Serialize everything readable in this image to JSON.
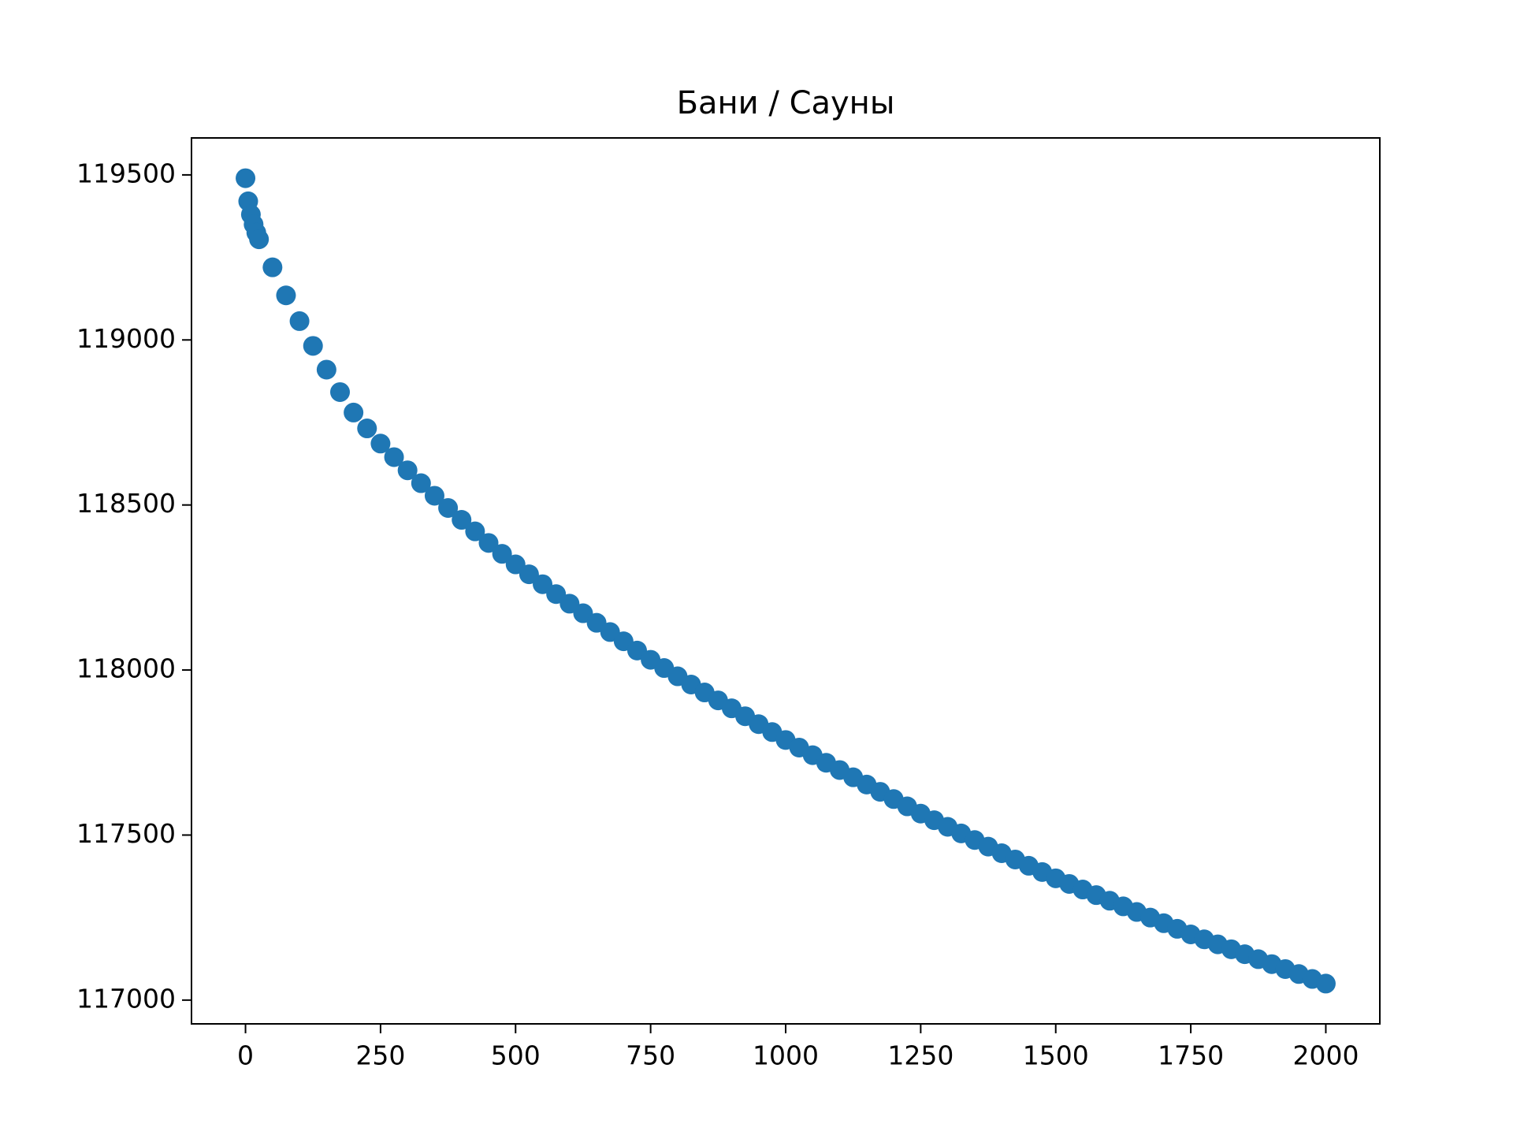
{
  "chart_data": {
    "type": "scatter",
    "title": "Бани / Сауны",
    "color": "#1f77b4",
    "x": [
      0,
      5,
      10,
      15,
      20,
      25,
      50,
      75,
      100,
      125,
      150,
      175,
      200,
      225,
      250,
      275,
      300,
      325,
      350,
      375,
      400,
      425,
      450,
      475,
      500,
      525,
      550,
      575,
      600,
      625,
      650,
      675,
      700,
      725,
      750,
      775,
      800,
      825,
      850,
      875,
      900,
      925,
      950,
      975,
      1000,
      1025,
      1050,
      1075,
      1100,
      1125,
      1150,
      1175,
      1200,
      1225,
      1250,
      1275,
      1300,
      1325,
      1350,
      1375,
      1400,
      1425,
      1450,
      1475,
      1500,
      1525,
      1550,
      1575,
      1600,
      1625,
      1650,
      1675,
      1700,
      1725,
      1750,
      1775,
      1800,
      1825,
      1850,
      1875,
      1900,
      1925,
      1950,
      1975,
      2000
    ],
    "values": [
      119490,
      119420,
      119380,
      119350,
      119325,
      119305,
      119220,
      119135,
      119057,
      118982,
      118910,
      118842,
      118780,
      118732,
      118686,
      118645,
      118605,
      118566,
      118528,
      118491,
      118455,
      118420,
      118385,
      118352,
      118320,
      118290,
      118260,
      118230,
      118201,
      118172,
      118143,
      118115,
      118087,
      118059,
      118031,
      118006,
      117981,
      117956,
      117932,
      117908,
      117884,
      117860,
      117836,
      117812,
      117788,
      117765,
      117742,
      117719,
      117697,
      117675,
      117653,
      117631,
      117609,
      117587,
      117565,
      117545,
      117525,
      117505,
      117485,
      117465,
      117445,
      117426,
      117407,
      117388,
      117369,
      117352,
      117335,
      117318,
      117301,
      117284,
      117267,
      117250,
      117233,
      117216,
      117199,
      117184,
      117169,
      117154,
      117139,
      117124,
      117109,
      117094,
      117079,
      117064,
      117050
    ],
    "xlim": [
      -100,
      2100
    ],
    "xticks": [
      0,
      250,
      500,
      750,
      1000,
      1250,
      1500,
      1750,
      2000
    ],
    "ylim": [
      116928,
      119612
    ],
    "yticks": [
      117000,
      117500,
      118000,
      118500,
      119000,
      119500
    ]
  }
}
